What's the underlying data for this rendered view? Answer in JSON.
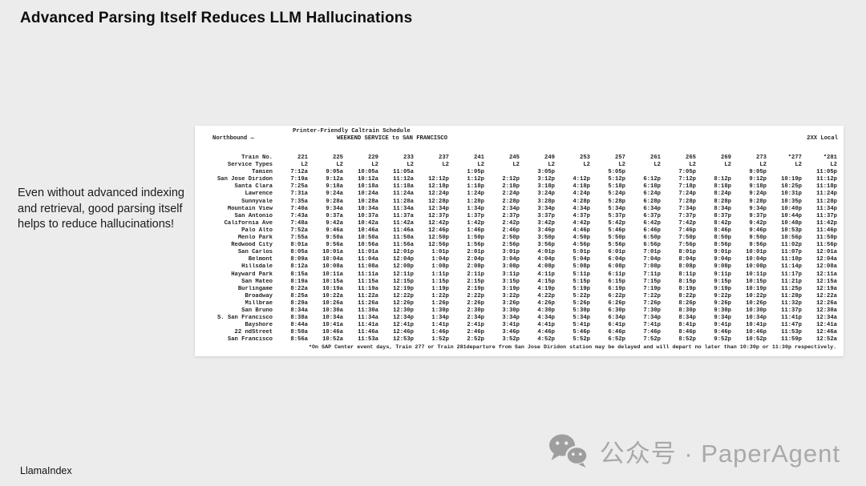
{
  "slide": {
    "title": "Advanced Parsing Itself Reduces LLM Hallucinations",
    "note_lines": [
      "Even without advanced indexing",
      "and retrieval, good parsing itself",
      "helps to reduce hallucinations!"
    ],
    "footer_left": "LlamaIndex",
    "watermark_text": "公众号 · PaperAgent",
    "watermark_icon": "wechat-icon"
  },
  "colors": {
    "background": "#ececec",
    "panel": "#ffffff",
    "text": "#1b1b1b",
    "watermark": "#a9a9a9"
  },
  "schedule": {
    "doc_title": "Printer-Friendly Caltrain Schedule",
    "direction": "Northbound —",
    "service": "WEEKEND SERVICE to SAN FRANCISCO",
    "route_type": "2XX Local",
    "col_header_label": "Train No.",
    "service_types_label": "Service Types",
    "train_numbers": [
      "221",
      "225",
      "229",
      "233",
      "237",
      "241",
      "245",
      "249",
      "253",
      "257",
      "261",
      "265",
      "269",
      "273",
      "*277",
      "*281"
    ],
    "service_types": [
      "L2",
      "L2",
      "L2",
      "L2",
      "L2",
      "L2",
      "L2",
      "L2",
      "L2",
      "L2",
      "L2",
      "L2",
      "L2",
      "L2",
      "L2",
      "L2"
    ],
    "rows": [
      {
        "station": "Tamien",
        "times": [
          "7:12a",
          "9:05a",
          "10:05a",
          "11:05a",
          "",
          "1:05p",
          "",
          "3:05p",
          "",
          "5:05p",
          "",
          "7:05p",
          "",
          "9:05p",
          "",
          "11:05p"
        ]
      },
      {
        "station": "San Jose Diridon",
        "times": [
          "7:19a",
          "9:12a",
          "10:12a",
          "11:12a",
          "12:12p",
          "1:12p",
          "2:12p",
          "3:12p",
          "4:12p",
          "5:12p",
          "6:12p",
          "7:12p",
          "8:12p",
          "9:12p",
          "10:19p",
          "11:12p"
        ]
      },
      {
        "station": "Santa Clara",
        "times": [
          "7:25a",
          "9:18a",
          "10:18a",
          "11:18a",
          "12:18p",
          "1:18p",
          "2:18p",
          "3:18p",
          "4:18p",
          "5:18p",
          "6:18p",
          "7:18p",
          "8:18p",
          "9:18p",
          "10:25p",
          "11:18p"
        ]
      },
      {
        "station": "Lawrence",
        "times": [
          "7:31a",
          "9:24a",
          "10:24a",
          "11:24a",
          "12:24p",
          "1:24p",
          "2:24p",
          "3:24p",
          "4:24p",
          "5:24p",
          "6:24p",
          "7:24p",
          "8:24p",
          "9:24p",
          "10:31p",
          "11:24p"
        ]
      },
      {
        "station": "Sunnyvale",
        "times": [
          "7:35a",
          "9:28a",
          "10:28a",
          "11:28a",
          "12:28p",
          "1:28p",
          "2:28p",
          "3:28p",
          "4:28p",
          "5:28p",
          "6:28p",
          "7:28p",
          "8:28p",
          "9:28p",
          "10:35p",
          "11:28p"
        ]
      },
      {
        "station": "Mountain View",
        "times": [
          "7:40a",
          "9:34a",
          "10:34a",
          "11:34a",
          "12:34p",
          "1:34p",
          "2:34p",
          "3:34p",
          "4:34p",
          "5:34p",
          "6:34p",
          "7:34p",
          "8:34p",
          "9:34p",
          "10:40p",
          "11:34p"
        ]
      },
      {
        "station": "San Antonio",
        "times": [
          "7:43a",
          "9:37a",
          "10:37a",
          "11:37a",
          "12:37p",
          "1:37p",
          "2:37p",
          "3:37p",
          "4:37p",
          "5:37p",
          "6:37p",
          "7:37p",
          "8:37p",
          "9:37p",
          "10:44p",
          "11:37p"
        ]
      },
      {
        "station": "California Ave",
        "times": [
          "7:48a",
          "9:42a",
          "10:42a",
          "11:42a",
          "12:42p",
          "1:42p",
          "2:42p",
          "3:42p",
          "4:42p",
          "5:42p",
          "6:42p",
          "7:42p",
          "8:42p",
          "9:42p",
          "10:48p",
          "11:42p"
        ]
      },
      {
        "station": "Palo Alto",
        "times": [
          "7:52a",
          "9:46a",
          "10:46a",
          "11:46a",
          "12:46p",
          "1:46p",
          "2:46p",
          "3:46p",
          "4:46p",
          "5:46p",
          "6:46p",
          "7:46p",
          "8:46p",
          "9:46p",
          "10:53p",
          "11:46p"
        ]
      },
      {
        "station": "Menlo Park",
        "times": [
          "7:55a",
          "9:50a",
          "10:50a",
          "11:50a",
          "12:50p",
          "1:50p",
          "2:50p",
          "3:50p",
          "4:50p",
          "5:50p",
          "6:50p",
          "7:50p",
          "8:50p",
          "9:50p",
          "10:56p",
          "11:50p"
        ]
      },
      {
        "station": "Redwood City",
        "times": [
          "8:01a",
          "9:56a",
          "10:56a",
          "11:56a",
          "12:56p",
          "1:56p",
          "2:56p",
          "3:56p",
          "4:56p",
          "5:56p",
          "6:56p",
          "7:56p",
          "8:56p",
          "9:56p",
          "11:02p",
          "11:56p"
        ]
      },
      {
        "station": "San Carlos",
        "times": [
          "8:05a",
          "10:01a",
          "11:01a",
          "12:01p",
          "1:01p",
          "2:01p",
          "3:01p",
          "4:01p",
          "5:01p",
          "6:01p",
          "7:01p",
          "8:01p",
          "9:01p",
          "10:01p",
          "11:07p",
          "12:01a"
        ]
      },
      {
        "station": "Belmont",
        "times": [
          "8:09a",
          "10:04a",
          "11:04a",
          "12:04p",
          "1:04p",
          "2:04p",
          "3:04p",
          "4:04p",
          "5:04p",
          "6:04p",
          "7:04p",
          "8:04p",
          "9:04p",
          "10:04p",
          "11:10p",
          "12:04a"
        ]
      },
      {
        "station": "Hillsdale",
        "times": [
          "8:12a",
          "10:08a",
          "11:08a",
          "12:08p",
          "1:08p",
          "2:08p",
          "3:08p",
          "4:08p",
          "5:08p",
          "6:08p",
          "7:08p",
          "8:08p",
          "9:08p",
          "10:08p",
          "11:14p",
          "12:08a"
        ]
      },
      {
        "station": "Hayward Park",
        "times": [
          "8:15a",
          "10:11a",
          "11:11a",
          "12:11p",
          "1:11p",
          "2:11p",
          "3:11p",
          "4:11p",
          "5:11p",
          "6:11p",
          "7:11p",
          "8:11p",
          "9:11p",
          "10:11p",
          "11:17p",
          "12:11a"
        ]
      },
      {
        "station": "San Mateo",
        "times": [
          "8:19a",
          "10:15a",
          "11:15a",
          "12:15p",
          "1:15p",
          "2:15p",
          "3:15p",
          "4:15p",
          "5:15p",
          "6:15p",
          "7:15p",
          "8:15p",
          "9:15p",
          "10:15p",
          "11:21p",
          "12:15a"
        ]
      },
      {
        "station": "Burlingame",
        "times": [
          "8:22a",
          "10:19a",
          "11:19a",
          "12:19p",
          "1:19p",
          "2:19p",
          "3:19p",
          "4:19p",
          "5:19p",
          "6:19p",
          "7:19p",
          "8:19p",
          "9:19p",
          "10:19p",
          "11:25p",
          "12:19a"
        ]
      },
      {
        "station": "Broadway",
        "times": [
          "8:25a",
          "10:22a",
          "11:22a",
          "12:22p",
          "1:22p",
          "2:22p",
          "3:22p",
          "4:22p",
          "5:22p",
          "6:22p",
          "7:22p",
          "8:22p",
          "9:22p",
          "10:22p",
          "11:28p",
          "12:22a"
        ]
      },
      {
        "station": "Millbrae",
        "times": [
          "8:29a",
          "10:26a",
          "11:26a",
          "12:26p",
          "1:26p",
          "2:26p",
          "3:26p",
          "4:26p",
          "5:26p",
          "6:26p",
          "7:26p",
          "8:26p",
          "9:26p",
          "10:26p",
          "11:32p",
          "12:26a"
        ]
      },
      {
        "station": "San Bruno",
        "times": [
          "8:34a",
          "10:30a",
          "11:30a",
          "12:30p",
          "1:30p",
          "2:30p",
          "3:30p",
          "4:30p",
          "5:30p",
          "6:30p",
          "7:30p",
          "8:30p",
          "9:30p",
          "10:30p",
          "11:37p",
          "12:30a"
        ]
      },
      {
        "station": "S. San Francisco",
        "times": [
          "8:38a",
          "10:34a",
          "11:34a",
          "12:34p",
          "1:34p",
          "2:34p",
          "3:34p",
          "4:34p",
          "5:34p",
          "6:34p",
          "7:34p",
          "8:34p",
          "9:34p",
          "10:34p",
          "11:41p",
          "12:34a"
        ]
      },
      {
        "station": "Bayshore",
        "times": [
          "8:44a",
          "10:41a",
          "11:41a",
          "12:41p",
          "1:41p",
          "2:41p",
          "3:41p",
          "4:41p",
          "5:41p",
          "6:41p",
          "7:41p",
          "8:41p",
          "9:41p",
          "10:41p",
          "11:47p",
          "12:41a"
        ]
      },
      {
        "station": "22 ndStreet",
        "times": [
          "8:50a",
          "10:46a",
          "11:46a",
          "12:46p",
          "1:46p",
          "2:46p",
          "3:46p",
          "4:46p",
          "5:46p",
          "6:46p",
          "7:46p",
          "8:46p",
          "9:46p",
          "10:46p",
          "11:53p",
          "12:46a"
        ]
      },
      {
        "station": "San Francisco",
        "times": [
          "8:56a",
          "10:52a",
          "11:53a",
          "12:53p",
          "1:52p",
          "2:52p",
          "3:52p",
          "4:52p",
          "5:52p",
          "6:52p",
          "7:52p",
          "8:52p",
          "9:52p",
          "10:52p",
          "11:59p",
          "12:52a"
        ]
      }
    ],
    "footnote": "*On SAP Center event days, Train 277 or Train 281departure from San Jose Diridon station may be delayed and will depart no later than 10:30p or 11:30p respectively."
  }
}
